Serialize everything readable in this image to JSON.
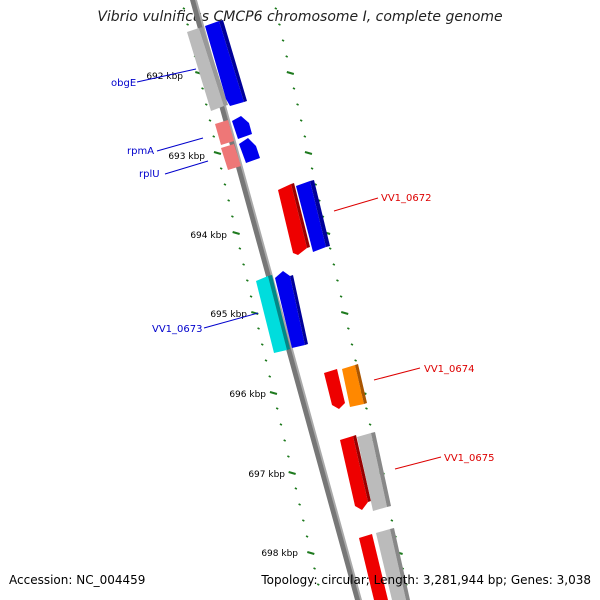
{
  "title": "Vibrio vulnificus CMCP6 chromosome I, complete genome",
  "footer": {
    "accession": "Accession: NC_004459",
    "summary": "Topology: circular; Length: 3,281,944 bp; Genes: 3,038"
  },
  "colors": {
    "backbone": "#777777",
    "ticks": "#1e7a1e",
    "gene_blue": "#0000ee",
    "gene_red": "#ee0000",
    "gene_salmon": "#ee7777",
    "gene_cyan": "#00dddd",
    "gene_orange": "#ff8800",
    "gene_gray": "#bbbbbb",
    "label_left": "#0000cc",
    "label_right": "#dd0000"
  },
  "ruler": [
    {
      "label": "692 kbp"
    },
    {
      "label": "693 kbp"
    },
    {
      "label": "694 kbp"
    },
    {
      "label": "695 kbp"
    },
    {
      "label": "696 kbp"
    },
    {
      "label": "697 kbp"
    },
    {
      "label": "698 kbp"
    }
  ],
  "gene_labels": {
    "obgE": "obgE",
    "rpmA": "rpmA",
    "rplU": "rplU",
    "vv1_0672": "VV1_0672",
    "vv1_0673": "VV1_0673",
    "vv1_0674": "VV1_0674",
    "vv1_0675": "VV1_0675"
  }
}
